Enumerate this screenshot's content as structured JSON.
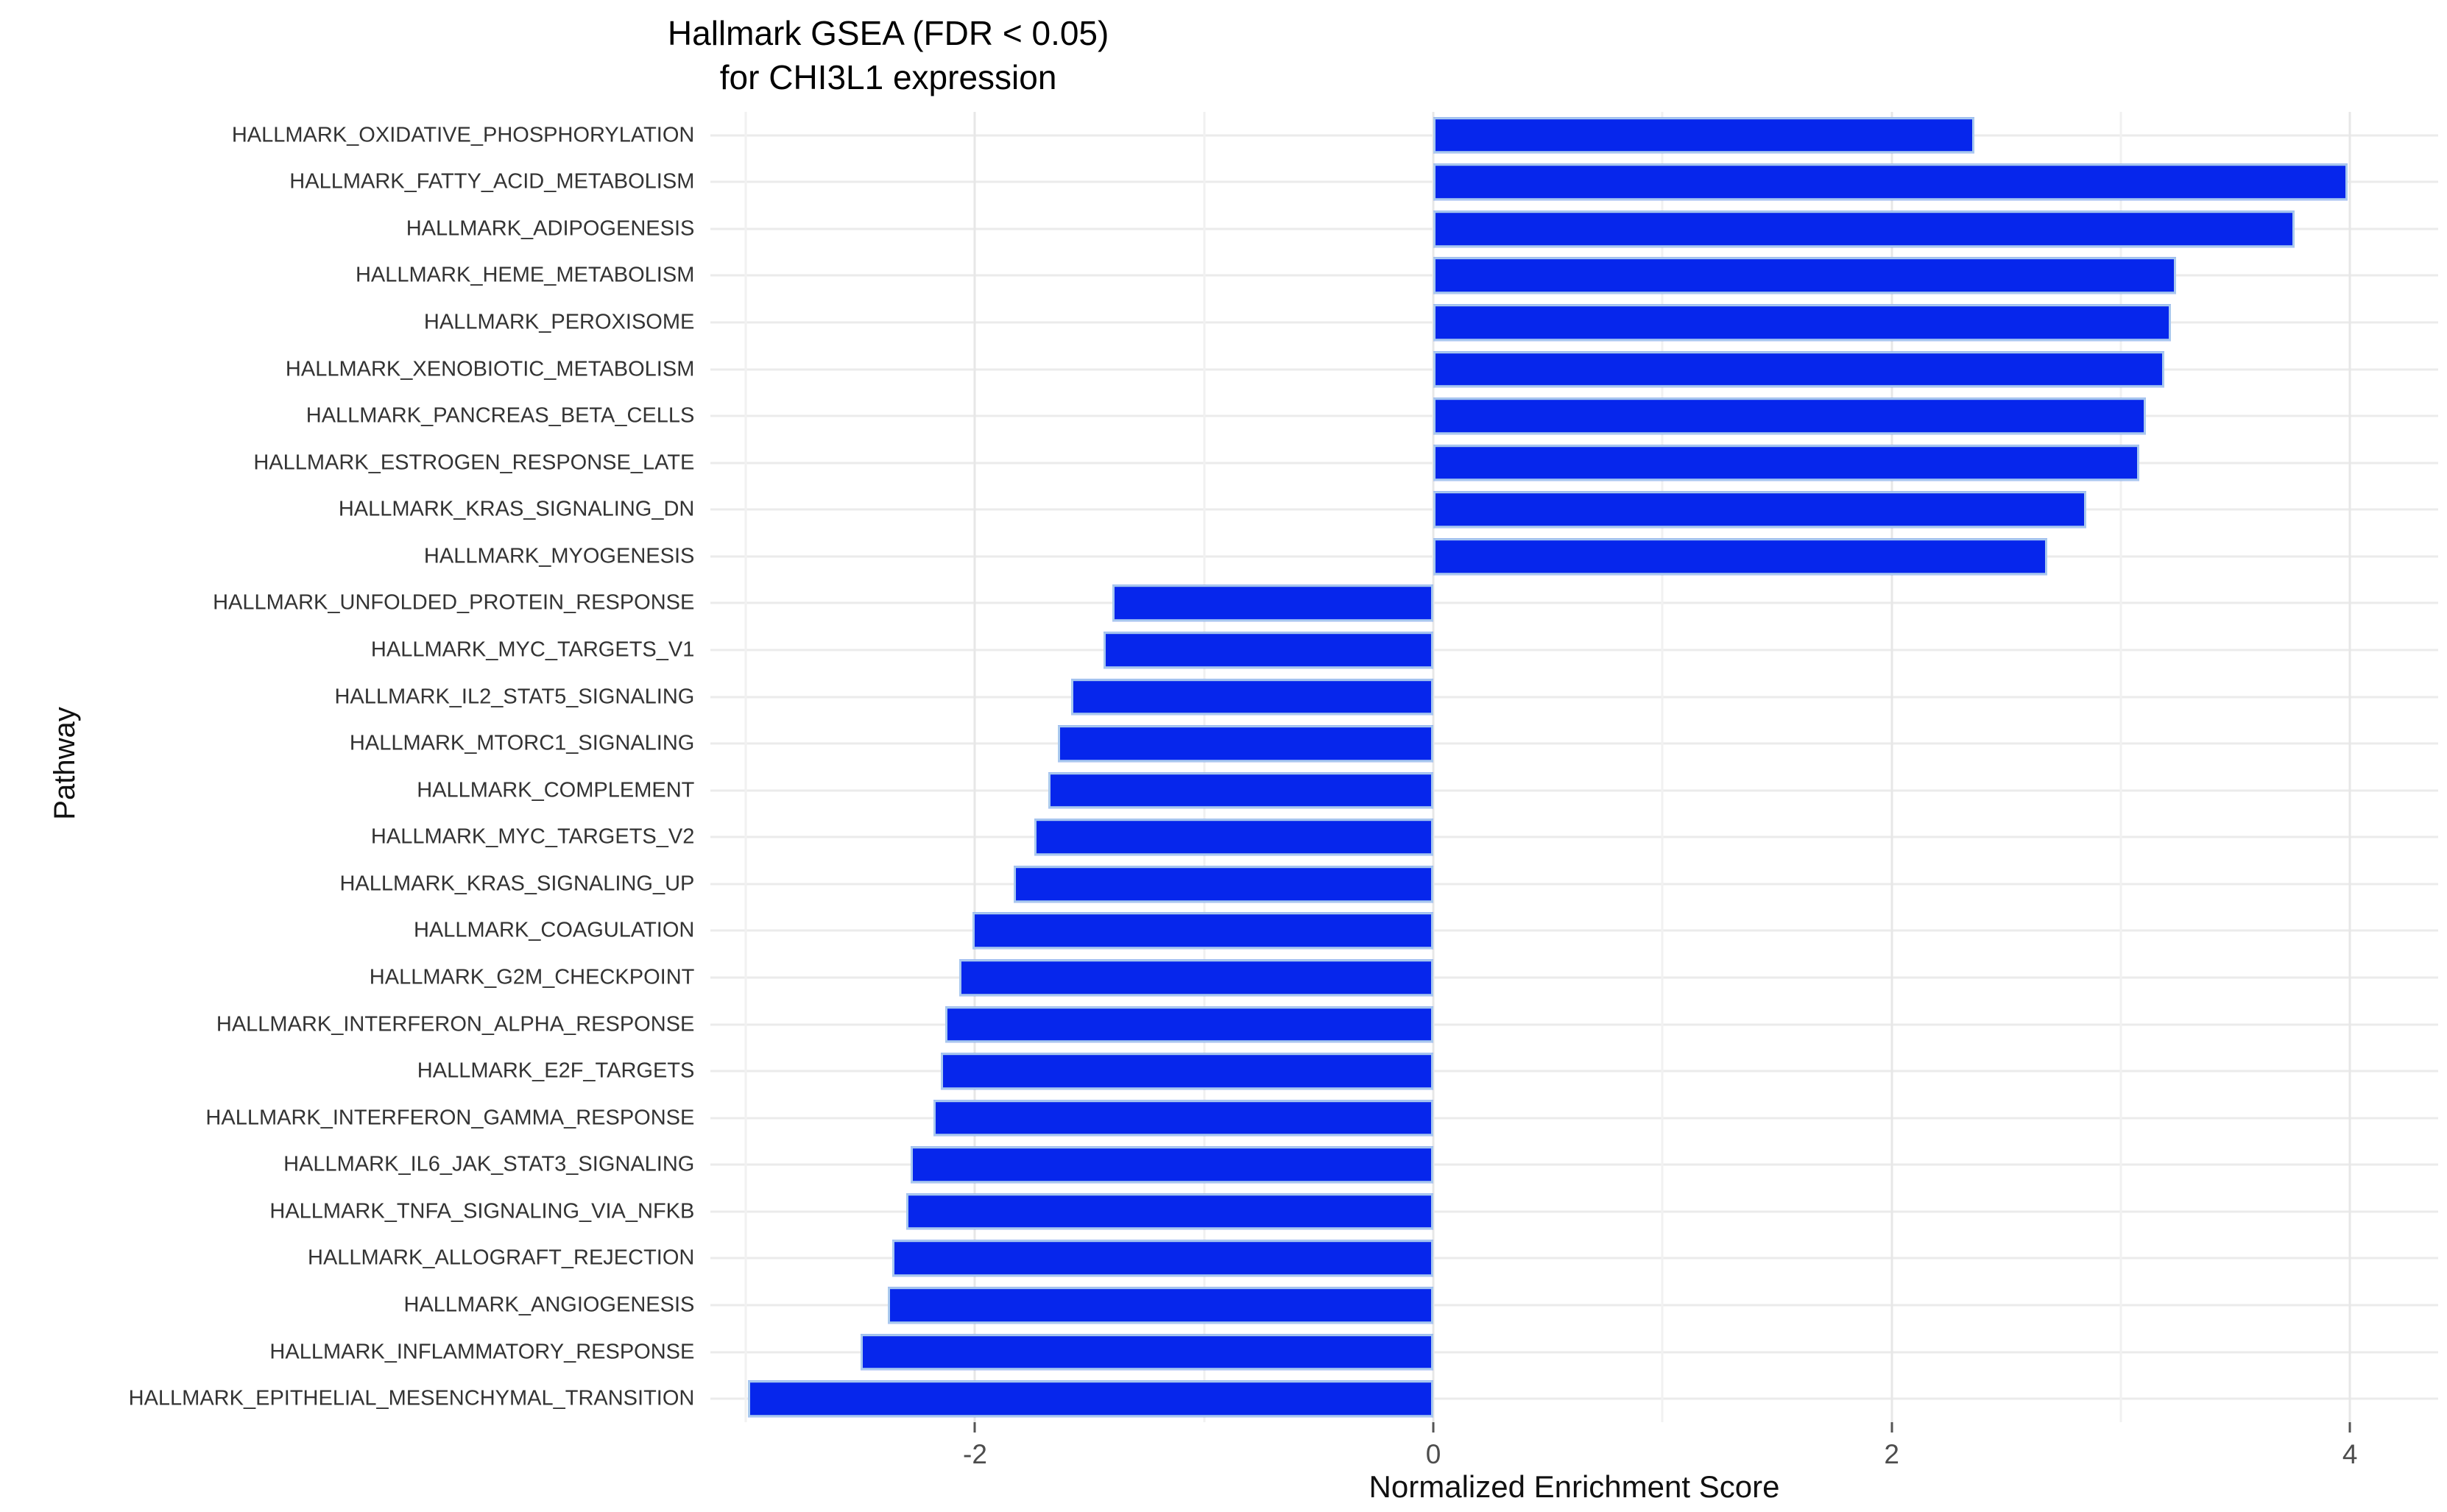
{
  "title": "Hallmark GSEA (FDR < 0.05)\nfor CHI3L1 expression",
  "chart_data": {
    "type": "bar",
    "orientation": "horizontal",
    "title": "Hallmark GSEA (FDR < 0.05) for CHI3L1 expression",
    "xlabel": "Normalized Enrichment Score",
    "ylabel": "Pathway",
    "xlim": [
      -3.155,
      4.385
    ],
    "x_ticks": [
      -2,
      0,
      2,
      4
    ],
    "x_tick_labels": [
      "-2",
      "0",
      "2",
      "4"
    ],
    "x_minor_ticks": [
      -3,
      -1,
      1,
      3
    ],
    "grid": true,
    "legend": "none",
    "bar_fill_color": "#0626ec",
    "bar_border_color": "#a9c9ee",
    "categories": [
      "HALLMARK_OXIDATIVE_PHOSPHORYLATION",
      "HALLMARK_FATTY_ACID_METABOLISM",
      "HALLMARK_ADIPOGENESIS",
      "HALLMARK_HEME_METABOLISM",
      "HALLMARK_PEROXISOME",
      "HALLMARK_XENOBIOTIC_METABOLISM",
      "HALLMARK_PANCREAS_BETA_CELLS",
      "HALLMARK_ESTROGEN_RESPONSE_LATE",
      "HALLMARK_KRAS_SIGNALING_DN",
      "HALLMARK_MYOGENESIS",
      "HALLMARK_UNFOLDED_PROTEIN_RESPONSE",
      "HALLMARK_MYC_TARGETS_V1",
      "HALLMARK_IL2_STAT5_SIGNALING",
      "HALLMARK_MTORC1_SIGNALING",
      "HALLMARK_COMPLEMENT",
      "HALLMARK_MYC_TARGETS_V2",
      "HALLMARK_KRAS_SIGNALING_UP",
      "HALLMARK_COAGULATION",
      "HALLMARK_G2M_CHECKPOINT",
      "HALLMARK_INTERFERON_ALPHA_RESPONSE",
      "HALLMARK_E2F_TARGETS",
      "HALLMARK_INTERFERON_GAMMA_RESPONSE",
      "HALLMARK_IL6_JAK_STAT3_SIGNALING",
      "HALLMARK_TNFA_SIGNALING_VIA_NFKB",
      "HALLMARK_ALLOGRAFT_REJECTION",
      "HALLMARK_ANGIOGENESIS",
      "HALLMARK_INFLAMMATORY_RESPONSE",
      "HALLMARK_EPITHELIAL_MESENCHYMAL_TRANSITION"
    ],
    "values": [
      2.36,
      3.99,
      3.76,
      3.24,
      3.22,
      3.19,
      3.11,
      3.08,
      2.85,
      2.68,
      -1.4,
      -1.44,
      -1.58,
      -1.64,
      -1.68,
      -1.74,
      -1.83,
      -2.01,
      -2.07,
      -2.13,
      -2.15,
      -2.18,
      -2.28,
      -2.3,
      -2.36,
      -2.38,
      -2.5,
      -2.99
    ]
  }
}
